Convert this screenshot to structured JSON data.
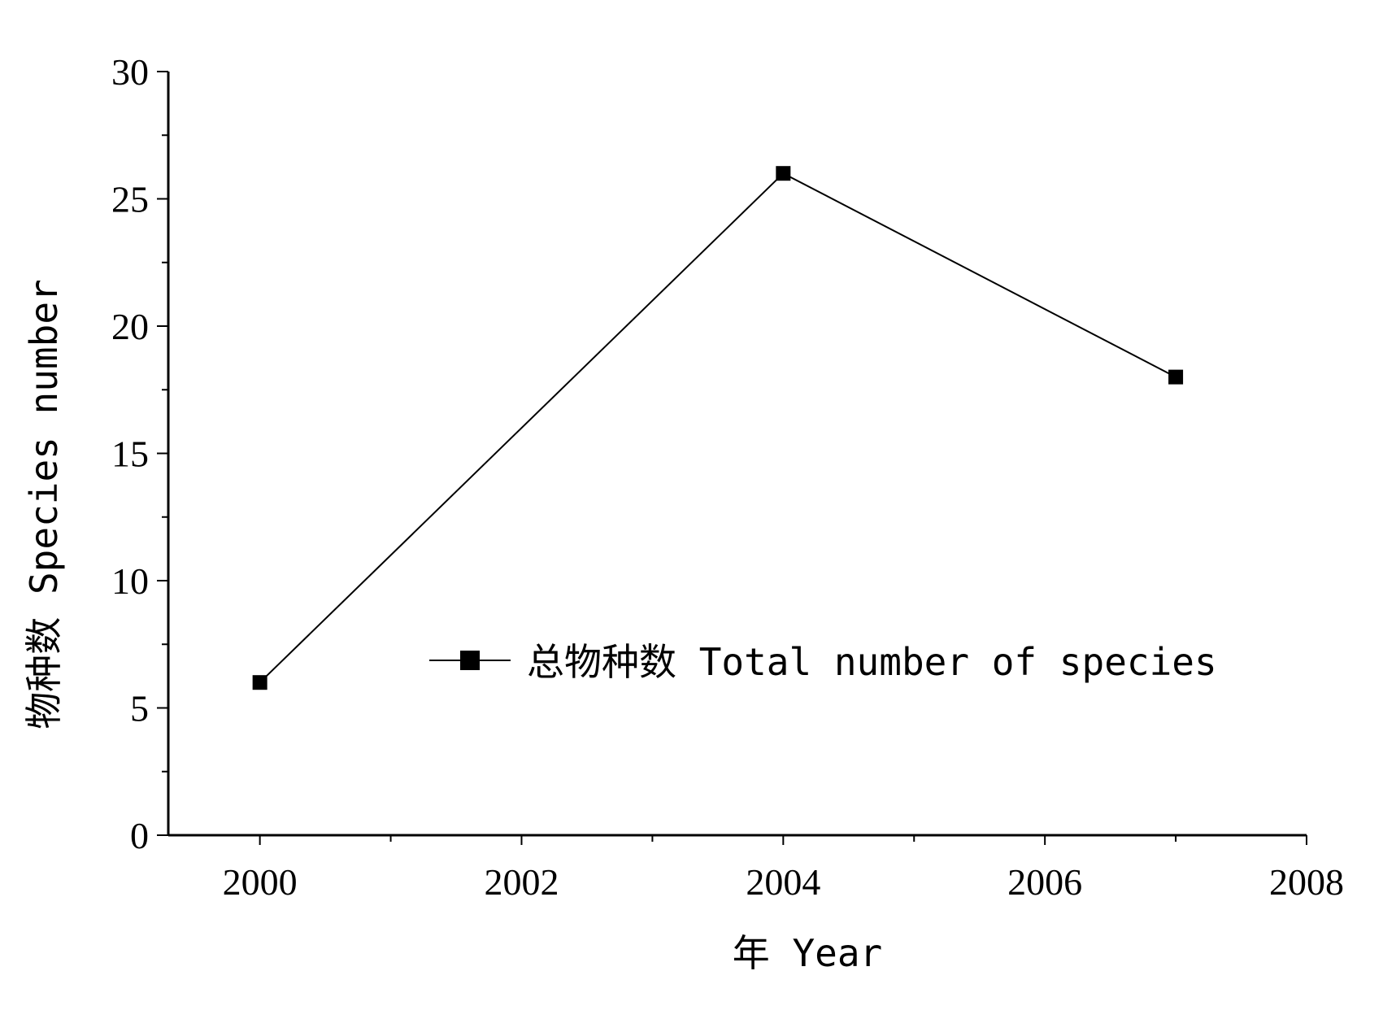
{
  "chart_data": {
    "type": "line",
    "title": "",
    "xlabel": "年 Year",
    "ylabel": "物种数 Species number",
    "xlim": [
      1999.3,
      2008
    ],
    "ylim": [
      0,
      30
    ],
    "x_ticks": [
      2000,
      2002,
      2004,
      2006,
      2008
    ],
    "y_ticks": [
      0,
      5,
      10,
      15,
      20,
      25,
      30
    ],
    "grid": false,
    "legend_position": "center-right",
    "series": [
      {
        "name": "总物种数 Total number of species",
        "marker": "square",
        "color": "#000000",
        "x": [
          2000,
          2004,
          2007
        ],
        "y": [
          6,
          26,
          18
        ]
      }
    ]
  }
}
